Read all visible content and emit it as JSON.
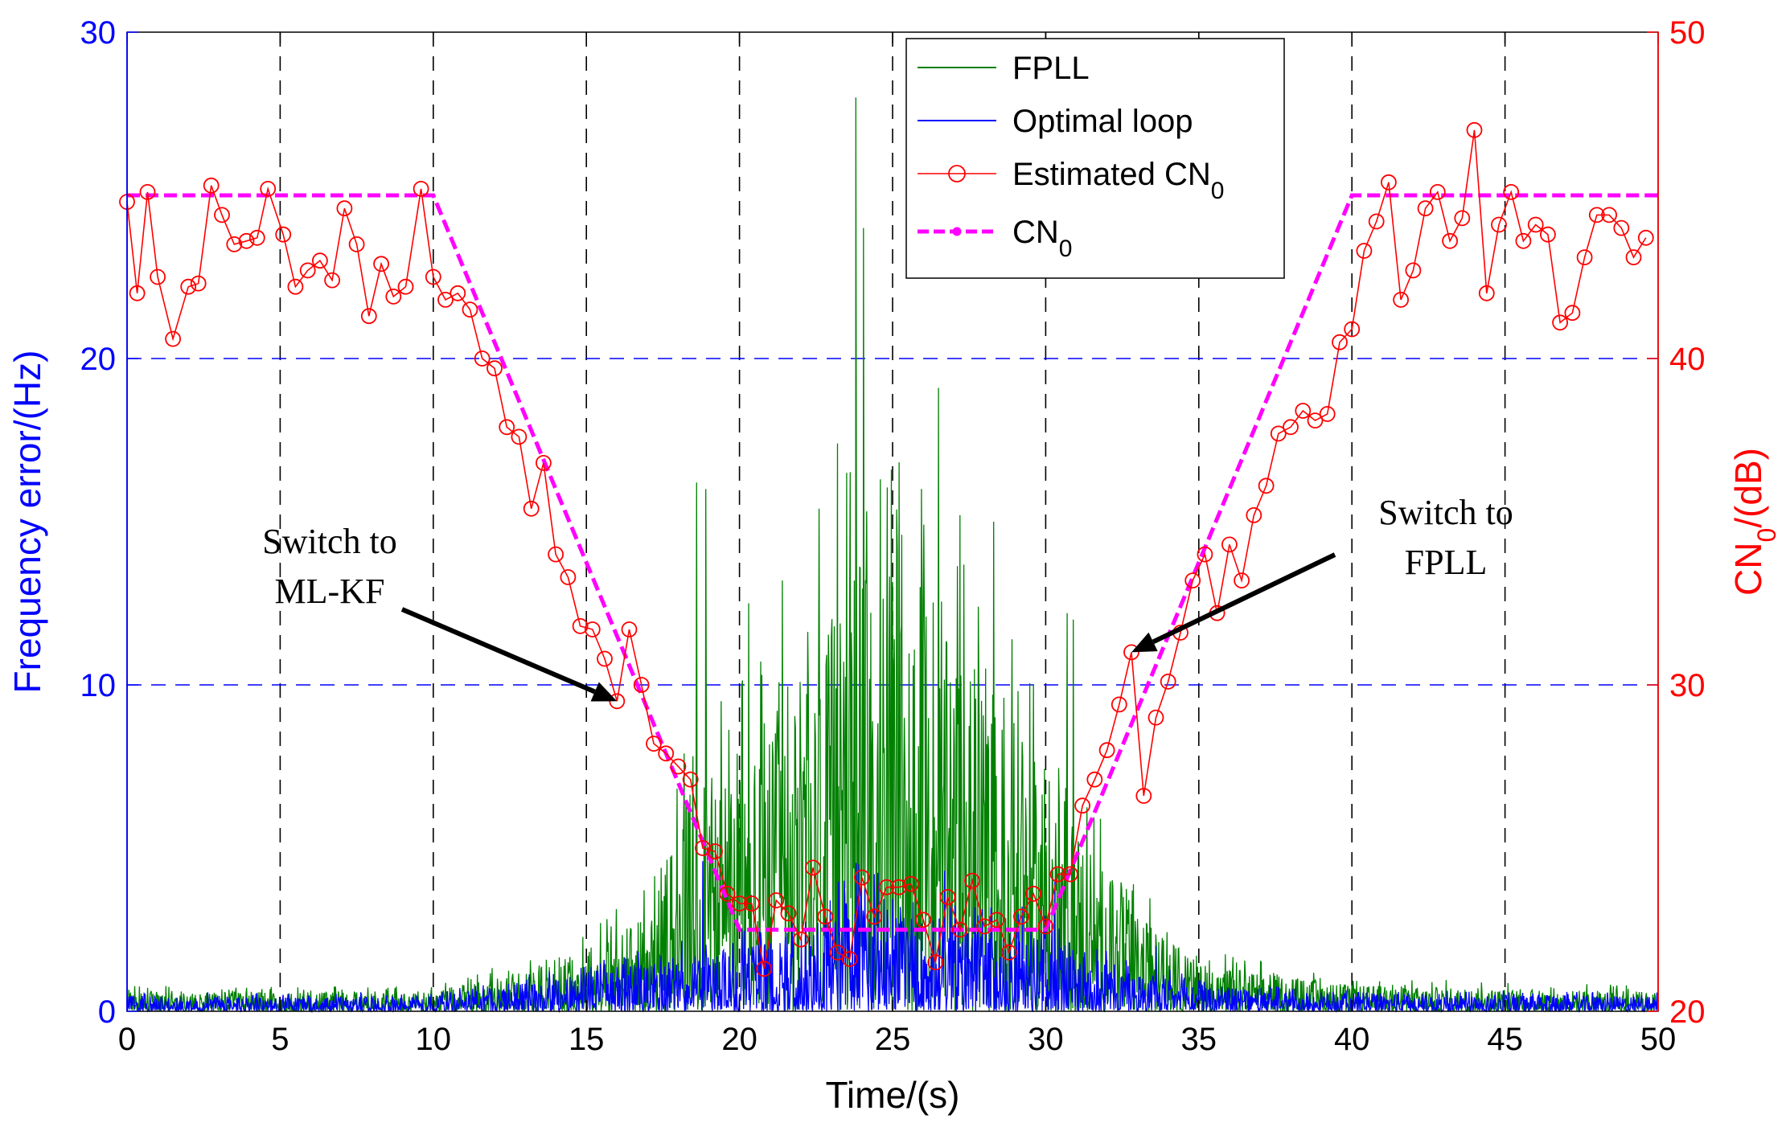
{
  "chart_data": {
    "type": "line",
    "title": "",
    "xlabel": "Time/(s)",
    "ylabel_left": "Frequency error/(Hz)",
    "ylabel_right_main": "CN",
    "ylabel_right_sub": "0",
    "ylabel_right_tail": "/(dB)",
    "xlim": [
      0,
      50
    ],
    "ylim_left": [
      0,
      30
    ],
    "ylim_right": [
      20,
      50
    ],
    "x_ticks": [
      "0",
      "5",
      "10",
      "15",
      "20",
      "25",
      "30",
      "35",
      "40",
      "45",
      "50"
    ],
    "y_left_ticks": [
      "0",
      "10",
      "20",
      "30"
    ],
    "y_right_ticks": [
      "20",
      "30",
      "40",
      "50"
    ],
    "grid": {
      "vertical_dashed": true,
      "horizontal_dashed": true
    },
    "legend_position": "top-center",
    "legend": [
      {
        "main": "FPLL",
        "sub": ""
      },
      {
        "main": "Optimal loop",
        "sub": ""
      },
      {
        "main": "Estimated CN",
        "sub": "0"
      },
      {
        "main": "CN",
        "sub": "0"
      }
    ],
    "annotations": [
      {
        "lines": [
          "Switch to",
          "ML-KF"
        ],
        "points_to": [
          16,
          29.5
        ]
      },
      {
        "lines": [
          "Switch to",
          "FPLL"
        ],
        "points_to": [
          32.8,
          31
        ]
      }
    ],
    "series": [
      {
        "name": "FPLL",
        "axis": "left",
        "color": "#008000",
        "style": "noise",
        "envelope": [
          [
            0,
            0.6
          ],
          [
            10,
            0.6
          ],
          [
            14,
            1.5
          ],
          [
            17,
            3
          ],
          [
            18.5,
            7
          ],
          [
            20,
            8
          ],
          [
            22,
            9
          ],
          [
            23,
            12
          ],
          [
            24,
            14
          ],
          [
            25,
            14
          ],
          [
            27,
            11
          ],
          [
            28,
            10
          ],
          [
            29.5,
            8
          ],
          [
            31,
            6
          ],
          [
            33,
            3
          ],
          [
            35,
            1.5
          ],
          [
            40,
            0.8
          ],
          [
            50,
            0.6
          ]
        ],
        "spikes": [
          [
            18.6,
            16.2
          ],
          [
            18.9,
            16.0
          ],
          [
            19.4,
            9.5
          ],
          [
            20.3,
            12.5
          ],
          [
            21.4,
            13.2
          ],
          [
            22.6,
            15.4
          ],
          [
            23.2,
            17.4
          ],
          [
            23.5,
            16.5
          ],
          [
            23.8,
            28
          ],
          [
            24.05,
            24
          ],
          [
            24.6,
            16.3
          ],
          [
            25.3,
            14.6
          ],
          [
            25.9,
            13.0
          ],
          [
            26.5,
            19.1
          ],
          [
            27.2,
            15.2
          ],
          [
            27.8,
            12.4
          ],
          [
            28.3,
            15.0
          ],
          [
            28.9,
            11.4
          ],
          [
            29.6,
            10.0
          ],
          [
            30.7,
            12.2
          ],
          [
            30.9,
            12.0
          ]
        ]
      },
      {
        "name": "Optimal loop",
        "axis": "left",
        "color": "#0000ff",
        "style": "noise",
        "envelope": [
          [
            0,
            0.45
          ],
          [
            10,
            0.45
          ],
          [
            14,
            1.0
          ],
          [
            17,
            1.5
          ],
          [
            20,
            2.0
          ],
          [
            23,
            2.8
          ],
          [
            24,
            4.0
          ],
          [
            25,
            3.0
          ],
          [
            28,
            2.6
          ],
          [
            30,
            2.5
          ],
          [
            32,
            1.5
          ],
          [
            34,
            1.0
          ],
          [
            37,
            0.6
          ],
          [
            50,
            0.45
          ]
        ],
        "spikes": [
          [
            18.8,
            4.6
          ],
          [
            23.9,
            4.5
          ],
          [
            24.4,
            4.2
          ],
          [
            26.7,
            4.3
          ],
          [
            30.3,
            4.0
          ],
          [
            33.6,
            2.0
          ]
        ]
      },
      {
        "name": "Estimated CN0",
        "axis": "right",
        "color": "#ff0000",
        "marker": "circle",
        "points": [
          [
            0,
            44.8
          ],
          [
            0.33,
            42
          ],
          [
            0.67,
            45.1
          ],
          [
            1,
            42.5
          ],
          [
            1.5,
            40.6
          ],
          [
            2,
            42.2
          ],
          [
            2.33,
            42.3
          ],
          [
            2.75,
            45.3
          ],
          [
            3.1,
            44.4
          ],
          [
            3.5,
            43.5
          ],
          [
            3.9,
            43.6
          ],
          [
            4.25,
            43.7
          ],
          [
            4.6,
            45.2
          ],
          [
            5.1,
            43.8
          ],
          [
            5.5,
            42.2
          ],
          [
            5.9,
            42.7
          ],
          [
            6.3,
            43
          ],
          [
            6.7,
            42.4
          ],
          [
            7.1,
            44.6
          ],
          [
            7.5,
            43.5
          ],
          [
            7.9,
            41.3
          ],
          [
            8.3,
            42.9
          ],
          [
            8.7,
            41.9
          ],
          [
            9.1,
            42.2
          ],
          [
            9.6,
            45.2
          ],
          [
            10,
            42.5
          ],
          [
            10.4,
            41.8
          ],
          [
            10.8,
            42
          ],
          [
            11.2,
            41.5
          ],
          [
            11.6,
            40
          ],
          [
            12,
            39.7
          ],
          [
            12.4,
            37.9
          ],
          [
            12.8,
            37.6
          ],
          [
            13.2,
            35.4
          ],
          [
            13.6,
            36.8
          ],
          [
            14,
            34
          ],
          [
            14.4,
            33.3
          ],
          [
            14.8,
            31.8
          ],
          [
            15.2,
            31.7
          ],
          [
            15.6,
            30.8
          ],
          [
            16,
            29.5
          ],
          [
            16.4,
            31.7
          ],
          [
            16.8,
            30
          ],
          [
            17.2,
            28.2
          ],
          [
            17.6,
            27.9
          ],
          [
            18,
            27.5
          ],
          [
            18.4,
            27.1
          ],
          [
            18.8,
            25
          ],
          [
            19.2,
            24.9
          ],
          [
            19.6,
            23.6
          ],
          [
            20,
            23.3
          ],
          [
            20.4,
            23.3
          ],
          [
            20.8,
            21.3
          ],
          [
            21.2,
            23.4
          ],
          [
            21.6,
            23
          ],
          [
            22,
            22.2
          ],
          [
            22.4,
            24.4
          ],
          [
            22.8,
            22.9
          ],
          [
            23.2,
            21.8
          ],
          [
            23.6,
            21.6
          ],
          [
            24,
            24.1
          ],
          [
            24.4,
            22.9
          ],
          [
            24.8,
            23.8
          ],
          [
            25.2,
            23.8
          ],
          [
            25.6,
            23.9
          ],
          [
            26,
            22.8
          ],
          [
            26.4,
            21.5
          ],
          [
            26.8,
            23.5
          ],
          [
            27.2,
            22.5
          ],
          [
            27.6,
            24
          ],
          [
            28,
            22.6
          ],
          [
            28.4,
            22.8
          ],
          [
            28.8,
            21.8
          ],
          [
            29.2,
            22.9
          ],
          [
            29.6,
            23.6
          ],
          [
            30,
            22.6
          ],
          [
            30.4,
            24.2
          ],
          [
            30.8,
            24.2
          ],
          [
            31.2,
            26.3
          ],
          [
            31.6,
            27.1
          ],
          [
            32,
            28
          ],
          [
            32.4,
            29.4
          ],
          [
            32.8,
            31
          ],
          [
            33.2,
            26.6
          ],
          [
            33.6,
            29
          ],
          [
            34,
            30.1
          ],
          [
            34.4,
            31.6
          ],
          [
            34.8,
            33.2
          ],
          [
            35.2,
            34
          ],
          [
            35.6,
            32.2
          ],
          [
            36,
            34.3
          ],
          [
            36.4,
            33.2
          ],
          [
            36.8,
            35.2
          ],
          [
            37.2,
            36.1
          ],
          [
            37.6,
            37.7
          ],
          [
            38,
            37.9
          ],
          [
            38.4,
            38.4
          ],
          [
            38.8,
            38.1
          ],
          [
            39.2,
            38.3
          ],
          [
            39.6,
            40.5
          ],
          [
            40,
            40.9
          ],
          [
            40.4,
            43.3
          ],
          [
            40.8,
            44.2
          ],
          [
            41.2,
            45.4
          ],
          [
            41.6,
            41.8
          ],
          [
            42,
            42.7
          ],
          [
            42.4,
            44.6
          ],
          [
            42.8,
            45.1
          ],
          [
            43.2,
            43.6
          ],
          [
            43.6,
            44.3
          ],
          [
            44,
            47
          ],
          [
            44.4,
            42
          ],
          [
            44.8,
            44.1
          ],
          [
            45.2,
            45.1
          ],
          [
            45.6,
            43.6
          ],
          [
            46,
            44.1
          ],
          [
            46.4,
            43.8
          ],
          [
            46.8,
            41.1
          ],
          [
            47.2,
            41.4
          ],
          [
            47.6,
            43.1
          ],
          [
            48,
            44.4
          ],
          [
            48.4,
            44.4
          ],
          [
            48.8,
            44
          ],
          [
            49.2,
            43.1
          ],
          [
            49.6,
            43.7
          ]
        ]
      },
      {
        "name": "CN0",
        "axis": "right",
        "color": "#ff00ff",
        "style": "dashed-thick",
        "points": [
          [
            0,
            45
          ],
          [
            10,
            45
          ],
          [
            20,
            22.5
          ],
          [
            30,
            22.5
          ],
          [
            40,
            45
          ],
          [
            50,
            45
          ]
        ]
      }
    ]
  }
}
